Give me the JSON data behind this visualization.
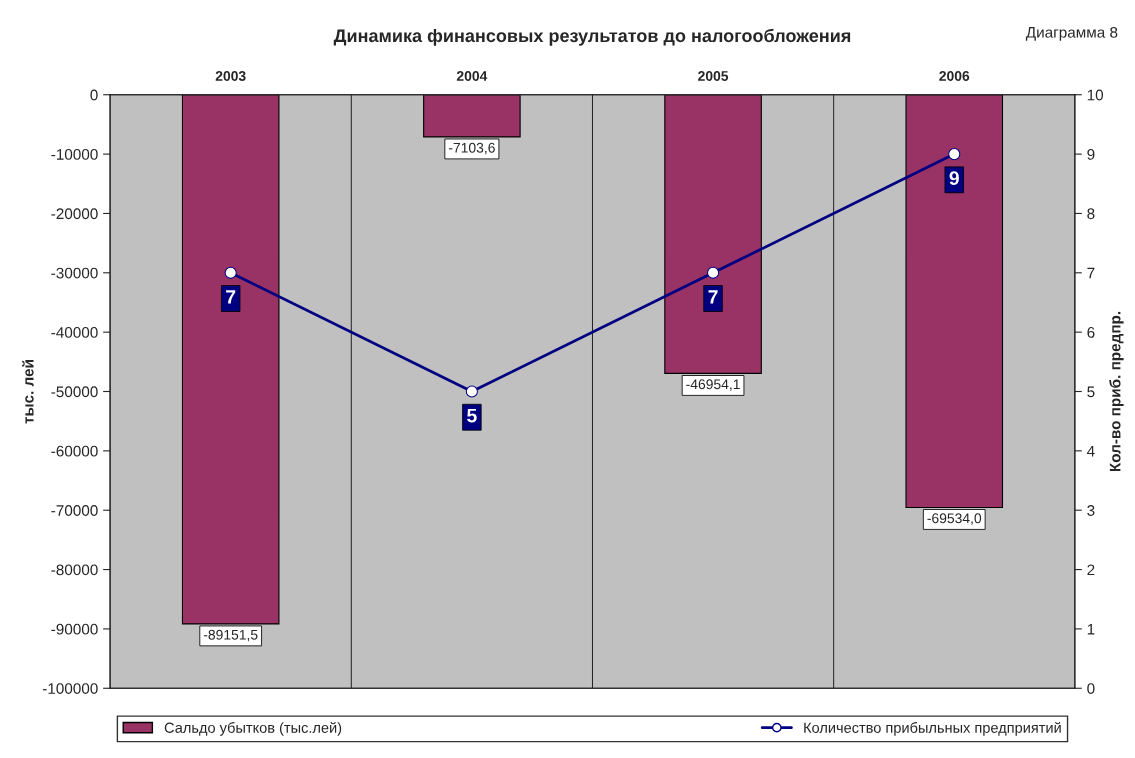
{
  "chart_data": {
    "type": "bar",
    "title": "Динамика финансовых результатов до налогообложения",
    "categories": [
      "2003",
      "2004",
      "2005",
      "2006"
    ],
    "ylabel": "тыс. лей",
    "y2label": "Кол-во приб. предпр.",
    "series": [
      {
        "name": "Сальдо убытков (тыс.лей)",
        "color": "#993366",
        "values": [
          -89151.5,
          -7103.6,
          -46954.1,
          -69534.0
        ],
        "value_labels": [
          "-89151,5",
          "-7103,6",
          "-46954,1",
          "-69534,0"
        ]
      },
      {
        "name": "Количество прибыльных предприятий",
        "type": "line",
        "axis": "y2",
        "color": "#000080",
        "marker": "circle",
        "values": [
          7,
          5,
          7,
          9
        ],
        "value_labels": [
          "7",
          "5",
          "7",
          "9"
        ]
      }
    ],
    "ylim": [
      -100000,
      0
    ],
    "yticks": [
      -100000,
      -90000,
      -80000,
      -70000,
      -60000,
      -50000,
      -40000,
      -30000,
      -20000,
      -10000,
      0
    ],
    "y2lim": [
      0,
      10
    ],
    "y2ticks": [
      0,
      1,
      2,
      3,
      4,
      5,
      6,
      7,
      8,
      9,
      10
    ],
    "grid": "x",
    "legend": "bottom",
    "annotations": [
      "Диаграмма 8"
    ]
  }
}
